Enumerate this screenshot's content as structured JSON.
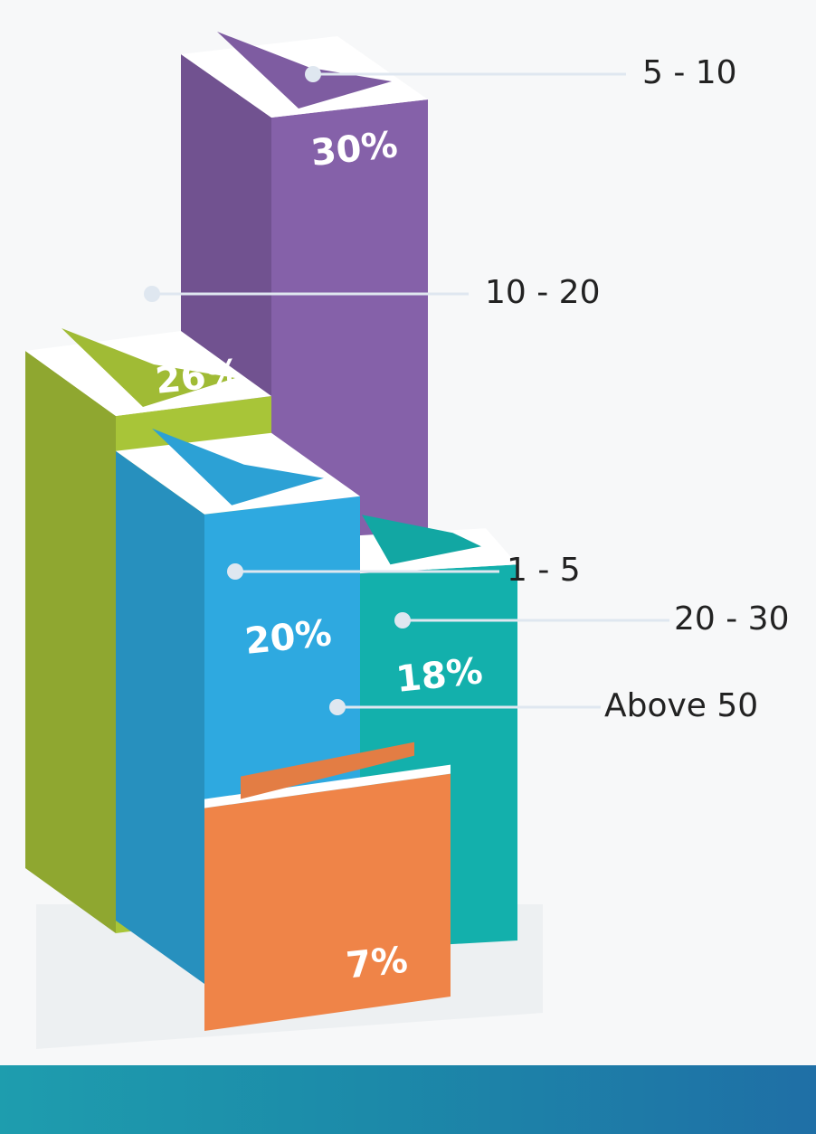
{
  "chart_data": {
    "type": "bar",
    "title": "",
    "xlabel": "",
    "ylabel": "",
    "categories": [
      "5 - 10",
      "10 - 20",
      "1 - 5",
      "20 - 30",
      "Above 50"
    ],
    "values": [
      30,
      26,
      20,
      18,
      7
    ],
    "value_labels": [
      "30%",
      "26%",
      "20%",
      "18%",
      "7%"
    ],
    "unit": "%",
    "style": "3d-isometric-columns",
    "grid": false,
    "legend": "none",
    "colors": {
      "5 - 10": "#8561a9",
      "10 - 20": "#a8c538",
      "1 - 5": "#2ea9e0",
      "20 - 30": "#13b0ac",
      "Above 50": "#ef8448"
    }
  }
}
